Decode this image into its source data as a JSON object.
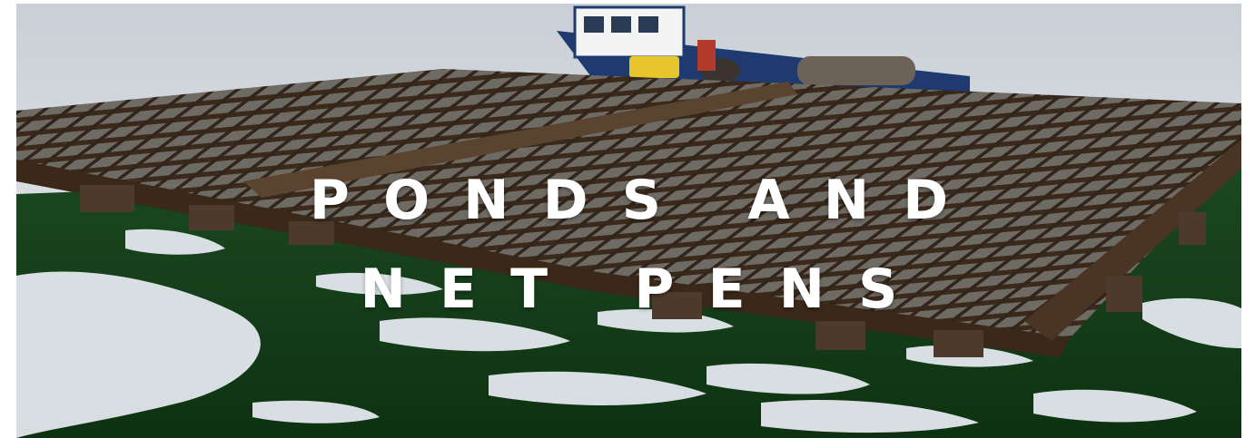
{
  "hero": {
    "title_line_1": "PONDS AND",
    "title_line_2": "NET PENS",
    "colors": {
      "sky": "#e6e9ec",
      "water_green": "#123c16",
      "water_reflection": "#e8ecf0",
      "raft_wood": "#3a2a1c",
      "boat_hull": "#1f3a6e",
      "title_text": "#ffffff"
    }
  }
}
